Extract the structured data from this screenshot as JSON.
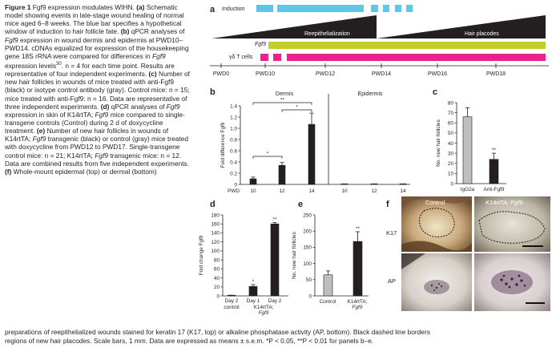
{
  "legend": {
    "figure_label": "Figure 1",
    "title": "Fgf9 expression modulates WIHN.",
    "panel_a": "Schematic model showing events in late-stage wound healing of normal mice aged 6–8 weeks. The blue bar specifies a hypothetical window of induction to hair follicle fate.",
    "panel_b_pre": "qPCR analyses of",
    "panel_b_gene": "Fgf9",
    "panel_b_post": "expression in wound dermis and epidermis at PWD10–PWD14. cDNAs equalized for expression of the housekeeping gene 18S rRNA were compared for differences in",
    "panel_b_gene2": "Fgf9",
    "panel_b_end": "expression levels",
    "panel_b_ref": "30",
    "panel_b_n": "n = 4 for each time point. Results are representative of four independent experiments.",
    "panel_c": "Number of new hair follicles in wounds of mice treated with anti-Fgf9 (black) or isotype control antibody (gray). Control mice: n = 15; mice treated with anti-Fgf9: n = 16. Data are representative of three independent experiments.",
    "panel_d_pre": "qPCR analyses of",
    "panel_d_gene": "Fgf9",
    "panel_d_mid": "expression in skin of K14rtTA;",
    "panel_d_gene2": "Fgf9",
    "panel_d_post": "mice compared to single-transgene controls (Control) during 2 d of doxycycline treatment.",
    "panel_e_pre": "Number of new hair follicles in wounds of K14rtTA;",
    "panel_e_gene": "Fgf9",
    "panel_e_post": "transgenic (black) or control (gray) mice treated with doxycycline from PWD12 to PWD17. Single-transgene control mice: n = 21; K14rtTA;",
    "panel_e_gene2": "Fgf9",
    "panel_e_end": "transgenic mice: n = 12. Data are combined results from five independent experiments.",
    "panel_f_start": "Whole-mount epidermal (top) or dermal (bottom)",
    "line2": "preparations of reepithelialized wounds stained for keratin 17 (K17, top) or alkaline phosphatase activity (AP, bottom). Black dashed line borders",
    "line3": "regions of new hair placodes. Scale bars, 1 mm. Data are expressed as means ± s.e.m. *P < 0.05, **P < 0.01 for panels b–e."
  },
  "panel_labels": {
    "a": "a",
    "b": "b",
    "c": "c",
    "d": "d",
    "e": "e",
    "f": "f"
  },
  "schematic": {
    "induction_label": "Induction",
    "reepithelialization_label": "Reepithelialization",
    "hair_placodes_label": "Hair placodes",
    "fgf9_label": "Fgf9",
    "gd_t_cells_label": "γδ T cells",
    "timeline": [
      "PWD0",
      "PWD10",
      "PWD12",
      "PWD14",
      "PWD16",
      "PWD18"
    ],
    "colors": {
      "induction": "#5bc8e6",
      "fgf9": "#c4cc2e",
      "t_cells": "#e8238c",
      "wedge": "#231f20"
    }
  },
  "chart_data": [
    {
      "id": "b",
      "type": "bar",
      "ylabel": "Fold difference Fgf9",
      "ylim": [
        0,
        1.4
      ],
      "yticks": [
        "0",
        "0.2",
        "0.4",
        "0.6",
        "0.8",
        "1.0",
        "1.2",
        "1.4"
      ],
      "xlabel_prefix": "PWD:",
      "groups": [
        {
          "name": "Dermis",
          "categories": [
            "10",
            "12",
            "14"
          ],
          "values": [
            0.1,
            0.34,
            1.07
          ],
          "errors": [
            0.03,
            0.05,
            0.2
          ]
        },
        {
          "name": "Epidermis",
          "categories": [
            "10",
            "12",
            "14"
          ],
          "values": [
            0.005,
            0.004,
            0.004
          ],
          "errors": [
            0,
            0,
            0
          ]
        }
      ],
      "significance": [
        "*",
        "*",
        "**"
      ]
    },
    {
      "id": "c",
      "type": "bar",
      "ylabel": "No. new hair follicles",
      "ylim": [
        0,
        80
      ],
      "yticks": [
        "0",
        "10",
        "20",
        "30",
        "40",
        "50",
        "60",
        "70",
        "80"
      ],
      "categories": [
        "IgG2a",
        "Anti-Fgf9"
      ],
      "values": [
        66,
        24
      ],
      "errors": [
        9,
        6
      ],
      "colors": [
        "#bcbec0",
        "#231f20"
      ],
      "significance": [
        "",
        "**"
      ]
    },
    {
      "id": "d",
      "type": "bar",
      "ylabel": "Fold change Fgf9",
      "ylim": [
        0,
        180
      ],
      "yticks": [
        "0",
        "20",
        "40",
        "60",
        "80",
        "100",
        "120",
        "140",
        "160",
        "180"
      ],
      "categories": [
        "Day 2 control",
        "Day 1",
        "Day 2"
      ],
      "group_label": "K14rtTA; Fgf9",
      "values": [
        1,
        21,
        160
      ],
      "errors": [
        0.5,
        4,
        3
      ],
      "significance": [
        "",
        "*",
        "**"
      ]
    },
    {
      "id": "e",
      "type": "bar",
      "ylabel": "No. new hair follicles",
      "ylim": [
        0,
        250
      ],
      "yticks": [
        "0",
        "50",
        "100",
        "150",
        "200",
        "250"
      ],
      "categories": [
        "Control",
        "K14rtTA; Fgf9"
      ],
      "values": [
        65,
        168
      ],
      "errors": [
        12,
        30
      ],
      "colors": [
        "#bcbec0",
        "#231f20"
      ],
      "significance": [
        "",
        "**"
      ]
    }
  ],
  "photos": {
    "k17_label": "K17",
    "ap_label": "AP",
    "control_label": "Control",
    "transgenic_label": "K14rtTA; Fgf9"
  }
}
